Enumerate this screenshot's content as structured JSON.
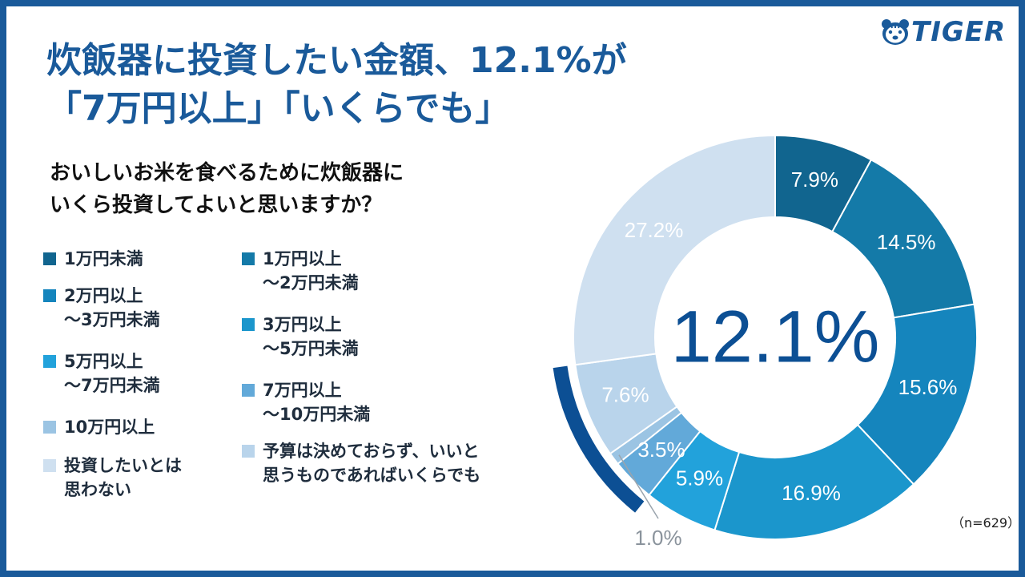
{
  "brand": {
    "logo_text": "TIGER",
    "color": "#1a5a9a"
  },
  "title": {
    "line1": "炊飯器に投資したい金額、12.1%が",
    "line2": "「7万円以上」「いくらでも」"
  },
  "question": {
    "line1": "おいしいお米を食べるために炊飯器に",
    "line2": "いくら投資してよいと思いますか？"
  },
  "sample_size": "（n=629）",
  "chart_data": {
    "type": "pie",
    "style": "donut",
    "title": "おいしいお米を食べるために炊飯器にいくら投資してよいと思いますか？",
    "center_label": "12.1%",
    "unit": "%",
    "categories": [
      "1万円未満",
      "1万円以上～2万円未満",
      "2万円以上～3万円未満",
      "3万円以上～5万円未満",
      "5万円以上～7万円未満",
      "7万円以上～10万円未満",
      "10万円以上",
      "予算は決めておらず、いいと思うものであればいくらでも",
      "投資したいとは思わない"
    ],
    "values": [
      7.9,
      14.5,
      15.6,
      16.9,
      5.9,
      3.5,
      1.0,
      7.6,
      27.2
    ],
    "labels": [
      "7.9%",
      "14.5%",
      "15.6%",
      "16.9%",
      "5.9%",
      "3.5%",
      "1.0%",
      "7.6%",
      "27.2%"
    ],
    "colors": [
      "#11658f",
      "#147aa8",
      "#1585bd",
      "#1b96cc",
      "#22a2db",
      "#62a9d9",
      "#9bc4e3",
      "#b9d4eb",
      "#cfe0f0"
    ],
    "highlight": {
      "categories": [
        "7万円以上～10万円未満",
        "10万円以上",
        "予算は決めておらず、いいと思うものであればいくらでも"
      ],
      "total": 12.1,
      "color": "#0c4f94"
    },
    "start_angle": "top",
    "direction": "clockwise"
  },
  "legend": {
    "left": [
      {
        "lines": [
          "1万円未満"
        ],
        "color": "#11658f"
      },
      {
        "lines": [
          "2万円以上",
          "～3万円未満"
        ],
        "color": "#1585bd"
      },
      {
        "lines": [
          "5万円以上",
          "～7万円未満"
        ],
        "color": "#22a2db"
      },
      {
        "lines": [
          "10万円以上"
        ],
        "color": "#9bc4e3"
      },
      {
        "lines": [
          "投資したいとは",
          "思わない"
        ],
        "color": "#cfe0f0"
      }
    ],
    "right": [
      {
        "lines": [
          "1万円以上",
          "～2万円未満"
        ],
        "color": "#147aa8"
      },
      {
        "lines": [
          "3万円以上",
          "～5万円未満"
        ],
        "color": "#1b96cc"
      },
      {
        "lines": [
          "7万円以上",
          "～10万円未満"
        ],
        "color": "#62a9d9"
      },
      {
        "lines": [
          "予算は決めておらず、いいと",
          "思うものであればいくらでも"
        ],
        "color": "#b9d4eb"
      }
    ]
  }
}
